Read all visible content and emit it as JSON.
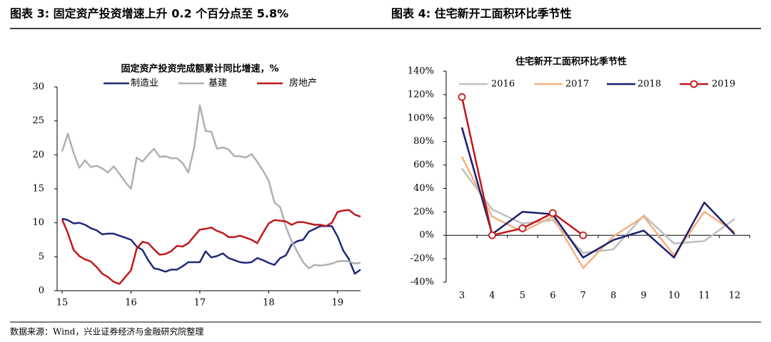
{
  "headers": [
    "图表 3:  固定资产投资增速上升 0.2 个百分点至 5.8%",
    "图表 4:  住宅新开工面积环比季节性"
  ],
  "source": "数据来源：Wind，兴业证券经济与金融研究院整理",
  "chart_data": [
    {
      "type": "line",
      "title": "固定资产投资完成额累计同比增速，%",
      "categories": [
        "15",
        null,
        null,
        null,
        null,
        null,
        null,
        null,
        null,
        null,
        null,
        null,
        "16",
        null,
        null,
        null,
        null,
        null,
        null,
        null,
        null,
        null,
        null,
        null,
        "17",
        null,
        null,
        null,
        null,
        null,
        null,
        null,
        null,
        null,
        null,
        null,
        "18",
        null,
        null,
        null,
        null,
        null,
        null,
        null,
        null,
        null,
        null,
        null,
        "19",
        null,
        null,
        null,
        null
      ],
      "series": [
        {
          "name": "制造业",
          "color": "#1f2a7a",
          "values": [
            10.6,
            10.4,
            9.9,
            10.0,
            9.7,
            9.2,
            8.9,
            8.3,
            8.4,
            8.4,
            8.1,
            7.8,
            7.5,
            6.5,
            6.0,
            4.5,
            3.3,
            3.1,
            2.8,
            3.1,
            3.1,
            3.6,
            4.2,
            4.2,
            4.2,
            5.8,
            4.9,
            5.1,
            5.5,
            4.8,
            4.5,
            4.2,
            4.1,
            4.2,
            4.8,
            4.5,
            4.1,
            3.8,
            4.8,
            5.2,
            6.8,
            7.3,
            7.5,
            8.7,
            9.1,
            9.5,
            9.5,
            9.5,
            8.0,
            5.9,
            4.6,
            2.5,
            3.1
          ]
        },
        {
          "name": "基建",
          "color": "#b0b0b0",
          "values": [
            20.5,
            23.1,
            20.3,
            18.1,
            19.2,
            18.2,
            18.4,
            18.0,
            17.4,
            18.3,
            17.2,
            16.0,
            15.0,
            19.6,
            19.0,
            20.0,
            20.9,
            19.7,
            19.8,
            19.5,
            19.5,
            18.8,
            17.4,
            21.0,
            27.3,
            23.5,
            23.4,
            20.9,
            21.1,
            20.8,
            19.8,
            19.8,
            19.6,
            20.1,
            19.0,
            17.7,
            16.2,
            13.0,
            12.3,
            9.4,
            7.3,
            5.7,
            4.2,
            3.3,
            3.8,
            3.7,
            3.8,
            4.0,
            4.3,
            4.4,
            4.3,
            4.0,
            4.1
          ]
        },
        {
          "name": "房地产",
          "color": "#c0181b",
          "values": [
            10.5,
            8.5,
            6.0,
            5.1,
            4.6,
            4.3,
            3.5,
            2.5,
            2.0,
            1.3,
            1.0,
            2.0,
            3.0,
            6.2,
            7.2,
            7.0,
            6.1,
            5.3,
            5.4,
            5.8,
            6.6,
            6.5,
            7.0,
            8.0,
            9.0,
            9.1,
            9.3,
            8.8,
            8.5,
            7.9,
            7.9,
            8.1,
            7.8,
            7.5,
            7.0,
            8.5,
            9.9,
            10.4,
            10.3,
            10.2,
            9.7,
            10.1,
            10.1,
            9.9,
            9.7,
            9.7,
            9.5,
            10.0,
            11.6,
            11.8,
            11.9,
            11.2,
            10.9
          ]
        }
      ],
      "ylim": [
        0,
        30
      ],
      "yticks": [
        0,
        5,
        10,
        15,
        20,
        25,
        30
      ]
    },
    {
      "type": "line",
      "title": "住宅新开工面积环比季节性",
      "categories": [
        "3",
        "4",
        "5",
        "6",
        "7",
        "8",
        "9",
        "10",
        "11",
        "12"
      ],
      "series": [
        {
          "name": "2016",
          "color": "#bfbfbf",
          "values": [
            57,
            22,
            10,
            13,
            -15,
            -12,
            17,
            -7,
            -5,
            14
          ]
        },
        {
          "name": "2017",
          "color": "#f4b183",
          "values": [
            67,
            16,
            3,
            16,
            -28,
            -1,
            16,
            -17,
            20,
            3
          ]
        },
        {
          "name": "2018",
          "color": "#1b1f6e",
          "values": [
            92,
            1,
            20,
            18,
            -19,
            -4,
            4,
            -19,
            28,
            1
          ]
        },
        {
          "name": "2019",
          "color": "#c0181b",
          "marker": "circle",
          "values": [
            118,
            0,
            6,
            19,
            0,
            null,
            null,
            null,
            null,
            null
          ]
        }
      ],
      "ylim": [
        -40,
        140
      ],
      "yticks": [
        {
          "value": -40,
          "label": "-40%"
        },
        {
          "value": -20,
          "label": "-20%"
        },
        {
          "value": 0,
          "label": "0%"
        },
        {
          "value": 20,
          "label": "20%"
        },
        {
          "value": 40,
          "label": "40%"
        },
        {
          "value": 60,
          "label": "60%"
        },
        {
          "value": 80,
          "label": "80%"
        },
        {
          "value": 100,
          "label": "100%"
        },
        {
          "value": 120,
          "label": "120%"
        },
        {
          "value": 140,
          "label": "140%"
        }
      ]
    }
  ]
}
